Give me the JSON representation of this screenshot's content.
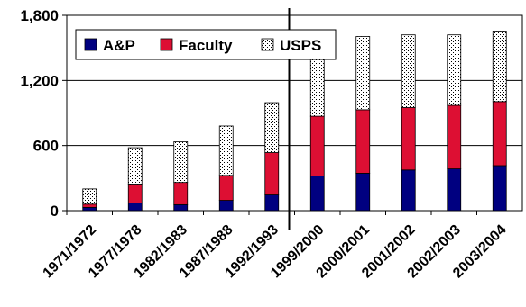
{
  "chart_data": {
    "type": "bar",
    "stacked": true,
    "title": "",
    "xlabel": "",
    "ylabel": "",
    "ylim": [
      0,
      1800
    ],
    "yticks": [
      "0",
      "600",
      "1,200",
      "1,800"
    ],
    "grid": true,
    "legend_position": "top-left",
    "categories": [
      "1971/1972",
      "1977/1978",
      "1982/1983",
      "1987/1988",
      "1992/1993",
      "1999/2000",
      "2000/2001",
      "2001/2002",
      "2002/2003",
      "2003/2004"
    ],
    "separator_after_category": "1992/1993",
    "series": [
      {
        "name": "A&P",
        "color": "#000080",
        "pattern": "solid",
        "values": [
          30,
          70,
          55,
          95,
          145,
          320,
          345,
          375,
          385,
          415
        ]
      },
      {
        "name": "Faculty",
        "color": "#dd0f33",
        "pattern": "solid",
        "values": [
          30,
          175,
          205,
          230,
          390,
          550,
          585,
          575,
          585,
          590
        ]
      },
      {
        "name": "USPS",
        "color": "#ffffff",
        "pattern": "dotted",
        "values": [
          140,
          335,
          375,
          455,
          460,
          655,
          675,
          670,
          650,
          650
        ]
      }
    ]
  }
}
